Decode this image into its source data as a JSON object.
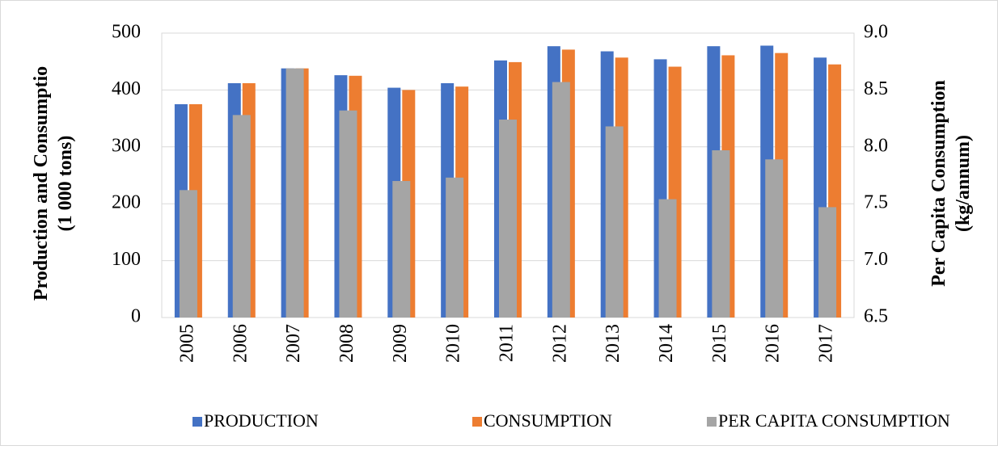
{
  "chart_data": {
    "type": "bar",
    "categories": [
      "2005",
      "2006",
      "2007",
      "2008",
      "2009",
      "2010",
      "2011",
      "2012",
      "2013",
      "2014",
      "2015",
      "2016",
      "2017"
    ],
    "y_label": [
      "Production and Consumptio",
      "(1 000 tons)"
    ],
    "y2_label": [
      "Per Capita Consumption",
      "(kg/annum)"
    ],
    "ylim": [
      0,
      500
    ],
    "yticks": [
      0,
      100,
      200,
      300,
      400,
      500
    ],
    "y2lim": [
      6.5,
      9.0
    ],
    "y2ticks": [
      6.5,
      {
        "value": 7,
        "label": "7.0"
      },
      7.5,
      {
        "value": 8,
        "label": "8.0"
      },
      8.5,
      {
        "value": 9,
        "label": "9.0"
      }
    ],
    "grid": true,
    "legend": "bottom",
    "series": [
      {
        "name": "PRODUCTION",
        "color": "#4472c4",
        "values": [
          375,
          412,
          438,
          426,
          404,
          412,
          452,
          477,
          468,
          454,
          477,
          478,
          457
        ]
      },
      {
        "name": "CONSUMPTION",
        "color": "#ed7d31",
        "values": [
          375,
          412,
          438,
          425,
          400,
          406,
          449,
          471,
          457,
          441,
          461,
          465,
          445
        ]
      },
      {
        "name": "PER CAPITA CONSUMPTION",
        "color": "#a5a5a5",
        "axis": "y2",
        "values": [
          7.62,
          8.28,
          8.69,
          8.32,
          7.7,
          7.73,
          8.24,
          8.57,
          8.18,
          7.54,
          7.97,
          7.89,
          7.47
        ]
      }
    ]
  }
}
